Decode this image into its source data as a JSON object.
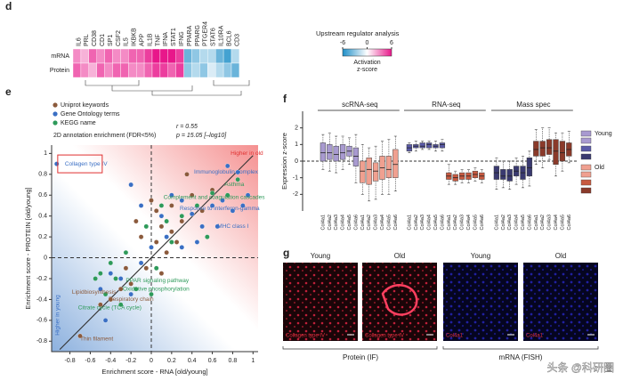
{
  "chart_data": [
    {
      "type": "heatmap",
      "panel_label": "d",
      "columns": [
        "IL6",
        "PRL",
        "CD38",
        "CD1",
        "SP1",
        "CSF2",
        "IL5",
        "IKBKB",
        "APP",
        "IL1B",
        "TNF",
        "IFNA",
        "STAT1",
        "IFNG",
        "PPARA",
        "PPARG",
        "PTGER4",
        "STAT6",
        "IL10RA",
        "BCL6",
        "CD3"
      ],
      "rows": [
        {
          "name": "mRNA",
          "values": [
            3,
            2,
            4,
            3,
            4,
            3,
            3,
            4,
            4,
            5,
            6,
            6,
            6,
            5,
            -4,
            -3,
            -2,
            -2,
            -4,
            -5,
            -2
          ]
        },
        {
          "name": "Protein",
          "values": [
            4,
            3,
            2,
            4,
            3,
            4,
            4,
            3,
            3,
            4,
            5,
            5,
            4,
            5,
            -3,
            -2,
            -3,
            -1,
            -2,
            -3,
            -4
          ]
        }
      ],
      "colorbar_title": "Upstream regulator analysis",
      "colorbar_label": [
        "Activation",
        "z-score"
      ],
      "clim": [
        -6,
        6
      ],
      "cticks": [
        -6,
        0,
        6
      ],
      "colors": {
        "low": "#1f8fc8",
        "mid": "#ffffff",
        "high": "#e8178a"
      }
    },
    {
      "type": "scatter",
      "panel_label": "e",
      "subtitle": "2D annotation enrichment (FDR<5%)",
      "stats": [
        "r = 0.55",
        "p = 15.05 [–log10]"
      ],
      "xlabel": "Enrichment score - RNA [old/young]",
      "ylabel": "Enrichment score - PROTEIN [old/young]",
      "xlim": [
        -0.98,
        1.05
      ],
      "ylim": [
        -0.9,
        1.08
      ],
      "xticks": [
        -0.8,
        -0.6,
        -0.4,
        -0.2,
        0,
        0.2,
        0.4,
        0.6,
        0.8,
        1
      ],
      "yticks": [
        -0.8,
        -0.6,
        -0.4,
        -0.2,
        0,
        0.2,
        0.4,
        0.6,
        0.8,
        1
      ],
      "series": [
        {
          "name": "Uniprot keywords",
          "color": "#8b5a3c",
          "x": [
            0.05,
            0.1,
            -0.1,
            0.2,
            0.3,
            -0.05,
            -0.3,
            -0.25,
            0.15,
            0.4,
            0.5,
            -0.15,
            0,
            -0.2,
            0.25,
            -0.4,
            0.1,
            0.6,
            0.05,
            -0.5,
            -0.7,
            0.35,
            0.2
          ],
          "y": [
            0.45,
            0.3,
            0.2,
            0.5,
            0.35,
            -0.1,
            -0.3,
            -0.1,
            0.05,
            0.6,
            0.45,
            0.35,
            0.55,
            -0.25,
            0.15,
            -0.4,
            -0.15,
            0.65,
            0.15,
            -0.45,
            -0.75,
            0.8,
            0.25
          ]
        },
        {
          "name": "Gene Ontology terms",
          "color": "#3a6fc4",
          "x": [
            -0.93,
            0.75,
            0.85,
            0.9,
            0.8,
            0.7,
            0.6,
            0.5,
            0.4,
            0.3,
            0.2,
            -0.1,
            -0.2,
            0.1,
            0.15,
            0,
            -0.1,
            -0.3,
            -0.4,
            -0.5,
            -0.2,
            0.45,
            0.65,
            0.95,
            -0.45,
            0.3
          ],
          "y": [
            0.9,
            0.88,
            0.82,
            0.5,
            0.45,
            0.55,
            0.5,
            0.3,
            0.42,
            0.55,
            0.6,
            0.5,
            0.7,
            0.4,
            0.2,
            0.1,
            -0.05,
            -0.2,
            -0.15,
            -0.3,
            -0.35,
            0.15,
            0.3,
            0.6,
            -0.6,
            0.1
          ]
        },
        {
          "name": "KEGG name",
          "color": "#2e9a5a",
          "x": [
            0.85,
            0.6,
            0.75,
            0.45,
            0.3,
            0.15,
            -0.05,
            -0.25,
            -0.35,
            -0.45,
            -0.4,
            -0.5,
            0.05,
            -0.15,
            -0.3,
            0.2,
            0.55,
            -0.55,
            0,
            0.1
          ],
          "y": [
            0.75,
            0.62,
            0.6,
            0.5,
            0.4,
            0.35,
            0.3,
            0.05,
            -0.2,
            -0.35,
            -0.05,
            -0.15,
            -0.1,
            -0.3,
            -0.45,
            0.15,
            0.2,
            -0.2,
            -0.35,
            0.5
          ]
        }
      ],
      "trend": {
        "x": [
          -0.9,
          1
        ],
        "y": [
          -0.88,
          0.98
        ]
      },
      "annotations": [
        {
          "text": "Collagen type IV",
          "x": -0.85,
          "y": 0.9,
          "color": "#3a6fc4"
        },
        {
          "text": "Higher in old",
          "x": 0.78,
          "y": 1.0,
          "color": "#e03030"
        },
        {
          "text": "Immunoglobulin complex",
          "x": 0.42,
          "y": 0.82,
          "color": "#3a6fc4"
        },
        {
          "text": "Asthma",
          "x": 0.72,
          "y": 0.7,
          "color": "#2e9a5a"
        },
        {
          "text": "Complement and coagulation cascades",
          "x": 0.12,
          "y": 0.58,
          "color": "#2e9a5a"
        },
        {
          "text": "Response to interferon-gamma",
          "x": 0.28,
          "y": 0.47,
          "color": "#3a6fc4"
        },
        {
          "text": "MHC class I",
          "x": 0.65,
          "y": 0.3,
          "color": "#3a6fc4"
        },
        {
          "text": "PPAR signaling pathway",
          "x": -0.25,
          "y": -0.22,
          "color": "#2e9a5a"
        },
        {
          "text": "Oxidative phosphorylation",
          "x": -0.28,
          "y": -0.3,
          "color": "#2e9a5a"
        },
        {
          "text": "Lipidbiosynthesis",
          "x": -0.78,
          "y": -0.33,
          "color": "#8b5a3c"
        },
        {
          "text": "Respiratory chain",
          "x": -0.42,
          "y": -0.4,
          "color": "#8b5a3c"
        },
        {
          "text": "Citrate cycle (TCA cycle)",
          "x": -0.72,
          "y": -0.48,
          "color": "#2e9a5a"
        },
        {
          "text": "Thin filament",
          "x": -0.7,
          "y": -0.78,
          "color": "#8b5a3c"
        }
      ],
      "corner_label": {
        "text": "Higher in young",
        "x": -0.92,
        "y": -0.55,
        "color": "#3a6fc4"
      }
    },
    {
      "type": "box",
      "panel_label": "f",
      "ylabel": "Expression z-score",
      "ylim": [
        -3,
        3
      ],
      "yticks": [
        -2,
        -1,
        0,
        1,
        2
      ],
      "categories": [
        "Col4a1",
        "Col4a2",
        "Col4a3",
        "Col4a4",
        "Col4a5",
        "Col4a6"
      ],
      "legend": [
        "Young",
        "Old"
      ],
      "groups": [
        {
          "name": "scRNA-seq",
          "young": {
            "color": "#a89ad0",
            "median": [
              0.5,
              0.5,
              0.4,
              0.5,
              0.6,
              0.3
            ],
            "q1": [
              0,
              0.1,
              0,
              0.1,
              0.3,
              -0.3
            ],
            "q3": [
              1.1,
              1,
              0.9,
              1,
              0.9,
              0.8
            ],
            "whislo": [
              -0.5,
              -0.6,
              -0.7,
              -0.5,
              -0.2,
              -1.3
            ],
            "whishi": [
              1.6,
              1.7,
              1.5,
              1.5,
              1.4,
              1.6
            ]
          },
          "old": {
            "color": "#f0a090",
            "median": [
              -0.6,
              -0.5,
              -0.6,
              -0.4,
              -0.5,
              -0.2
            ],
            "q1": [
              -1.3,
              -1.4,
              -1.2,
              -1.1,
              -1,
              -1
            ],
            "q3": [
              0,
              0.2,
              -0.1,
              0.3,
              0.3,
              0.7
            ],
            "whislo": [
              -2,
              -2.4,
              -2.3,
              -2,
              -2,
              -1.8
            ],
            "whishi": [
              1,
              0.8,
              0.9,
              1.2,
              1.3,
              1.5
            ]
          }
        },
        {
          "name": "RNA-seq",
          "young": {
            "color": "#5a5aa8",
            "median": [
              0.8,
              0.9,
              0.9,
              1,
              0.9,
              1
            ],
            "q1": [
              0.6,
              0.8,
              0.8,
              0.8,
              0.8,
              0.8
            ],
            "q3": [
              1,
              1,
              1.1,
              1.1,
              1,
              1.1
            ],
            "whislo": [
              0.5,
              0.6,
              0.7,
              0.7,
              0.6,
              0.6
            ],
            "whishi": [
              1.1,
              1.2,
              1.2,
              1.2,
              1.2,
              1.3
            ]
          },
          "old": {
            "color": "#c85a40",
            "median": [
              -0.9,
              -1,
              -0.9,
              -0.9,
              -0.8,
              -0.9
            ],
            "q1": [
              -1.1,
              -1.2,
              -1.1,
              -1.1,
              -1,
              -1.1
            ],
            "q3": [
              -0.7,
              -0.8,
              -0.7,
              -0.7,
              -0.6,
              -0.7
            ],
            "whislo": [
              -1.4,
              -1.4,
              -1.3,
              -1.3,
              -1.2,
              -1.3
            ],
            "whishi": [
              -0.2,
              -0.6,
              -0.5,
              -0.5,
              -0.4,
              -0.5
            ]
          }
        },
        {
          "name": "Mass spec",
          "young": {
            "color": "#3a3a70",
            "median": [
              -0.7,
              -0.9,
              -0.9,
              -0.6,
              -0.7,
              -0.4
            ],
            "q1": [
              -1.1,
              -1.1,
              -1.2,
              -0.9,
              -1.1,
              -0.9
            ],
            "q3": [
              -0.3,
              -0.5,
              -0.5,
              -0.3,
              -0.3,
              0.2
            ],
            "whislo": [
              -1.7,
              -1.6,
              -1.7,
              -1.4,
              -1.6,
              -1.5
            ],
            "whishi": [
              0.2,
              0,
              0,
              0.2,
              0.3,
              0.6
            ]
          },
          "old": {
            "color": "#8a3a2a",
            "median": [
              0.7,
              0.8,
              0.8,
              0.6,
              0.5,
              0.7
            ],
            "q1": [
              0.3,
              0.3,
              0.4,
              -0.2,
              0,
              0.3
            ],
            "q3": [
              1.2,
              1.2,
              1.3,
              1.3,
              1.2,
              1.1
            ],
            "whislo": [
              -0.2,
              -0.4,
              0.1,
              -0.9,
              -0.6,
              -0.1
            ],
            "whishi": [
              1.9,
              2,
              2,
              1.7,
              1.7,
              1.8
            ]
          }
        }
      ]
    }
  ],
  "images": {
    "panel_label": "g",
    "titles": [
      "Young",
      "Old",
      "Young",
      "Old"
    ],
    "captions": [
      "Collagen type IV",
      "Collagen type IV",
      "Col4a1",
      "Col4a1"
    ],
    "groups": [
      "Protein (IF)",
      "mRNA (FISH)"
    ]
  },
  "watermark": "头条 @科研圈"
}
